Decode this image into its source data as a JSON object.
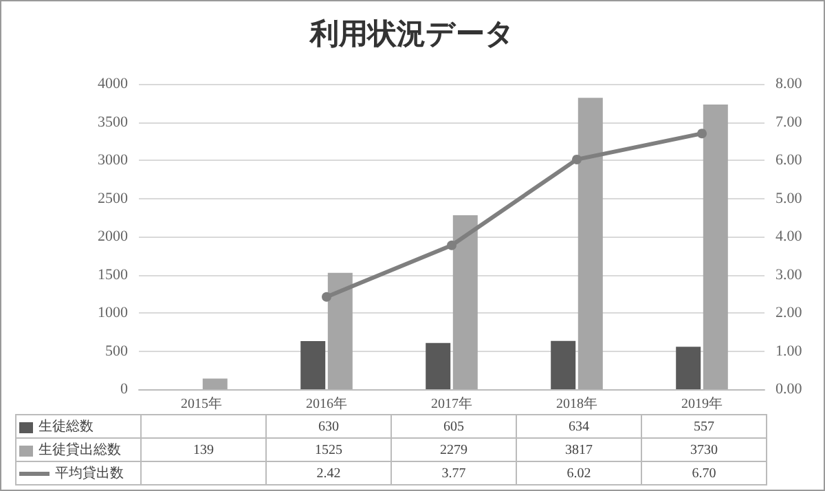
{
  "chart_data": {
    "type": "bar",
    "title": "利用状況データ",
    "categories": [
      "2015年",
      "2016年",
      "2017年",
      "2018年",
      "2019年"
    ],
    "series": [
      {
        "name": "生徒総数",
        "color": "#595959",
        "values": [
          null,
          630,
          605,
          634,
          557
        ],
        "value_labels": [
          null,
          "630",
          "605",
          "634",
          "557"
        ]
      },
      {
        "name": "生徒貸出総数",
        "color": "#a6a6a6",
        "values": [
          139,
          1525,
          2279,
          3817,
          3730
        ],
        "value_labels": [
          "139",
          "1525",
          "2279",
          "3817",
          "3730"
        ]
      },
      {
        "name": "平均貸出数",
        "type": "line",
        "axis": "y2",
        "color": "#7f7f7f",
        "marker": "circle",
        "values": [
          null,
          2.42,
          3.77,
          6.02,
          6.7
        ],
        "value_labels": [
          null,
          "2.42",
          "3.77",
          "6.02",
          "6.70"
        ]
      }
    ],
    "ylim": [
      0,
      4000
    ],
    "yticks": [
      0,
      500,
      1000,
      1500,
      2000,
      2500,
      3000,
      3500,
      4000
    ],
    "y2lim": [
      0,
      8
    ],
    "y2ticks": [
      {
        "value": 0,
        "label": "0.00"
      },
      {
        "value": 1,
        "label": "1.00"
      },
      {
        "value": 2,
        "label": "2.00"
      },
      {
        "value": 3,
        "label": "3.00"
      },
      {
        "value": 4,
        "label": "4.00"
      },
      {
        "value": 5,
        "label": "5.00"
      },
      {
        "value": 6,
        "label": "6.00"
      },
      {
        "value": 7,
        "label": "7.00"
      },
      {
        "value": 8,
        "label": "8.00"
      }
    ],
    "grid": "y",
    "legend": "bottom"
  }
}
